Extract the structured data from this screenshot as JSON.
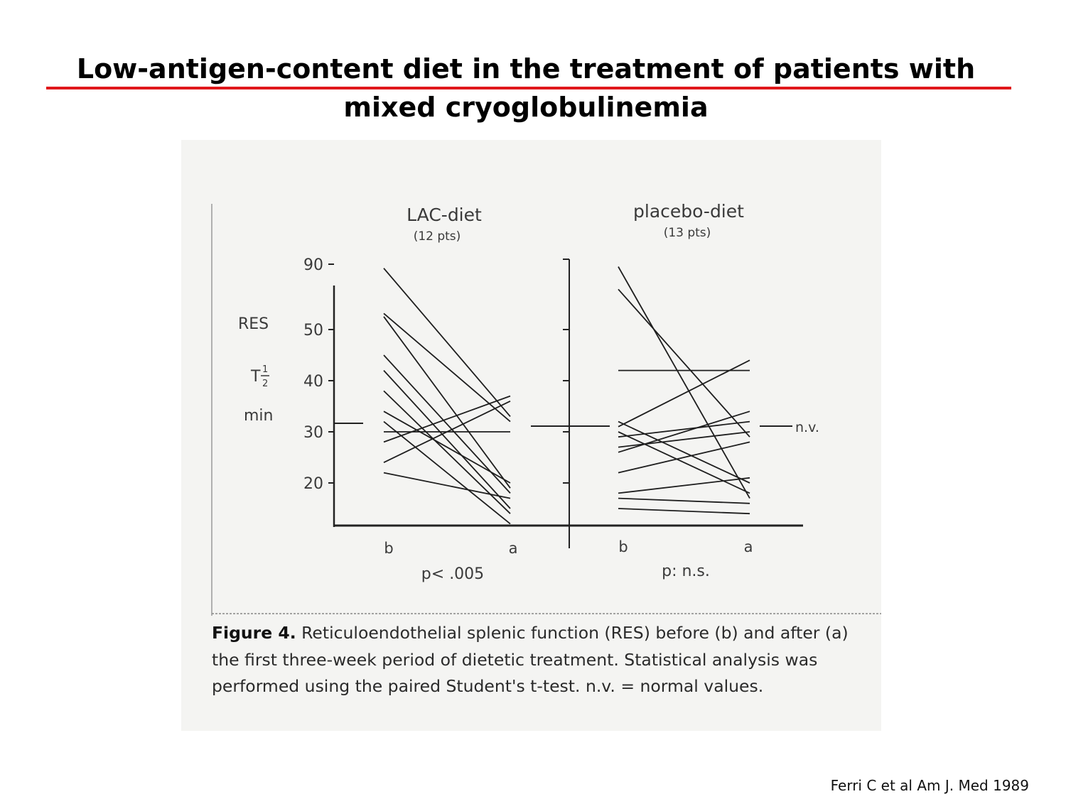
{
  "slide": {
    "title_line1": "Low-antigen-content diet in the treatment of patients with",
    "title_line2": "mixed cryoglobulinemia",
    "citation": "Ferri C et al Am J. Med 1989",
    "accent_color": "#e0181b"
  },
  "figure": {
    "caption_label": "Figure 4.",
    "caption_text": "Reticuloendothelial splenic function (RES) before (b) and after (a) the first three-week period of dietetic treatment. Statistical analysis was performed using the paired Student's t-test. n.v. = normal values."
  },
  "chart_data": {
    "type": "line",
    "ylabel_parts": [
      "RES",
      "T",
      "1",
      "2",
      "min"
    ],
    "yticks": [
      "90",
      "50",
      "40",
      "30",
      "20"
    ],
    "normal_value": 30,
    "normal_label": "n.v.",
    "panels": [
      {
        "name": "LAC-diet",
        "patients": "(12 pts)",
        "x": [
          "b",
          "a"
        ],
        "stat": "p< .005",
        "series": [
          {
            "values": [
              88,
              33
            ]
          },
          {
            "values": [
              60,
              32
            ]
          },
          {
            "values": [
              58,
              19
            ]
          },
          {
            "values": [
              45,
              18
            ]
          },
          {
            "values": [
              42,
              15
            ]
          },
          {
            "values": [
              38,
              14
            ]
          },
          {
            "values": [
              34,
              20
            ]
          },
          {
            "values": [
              32,
              12
            ]
          },
          {
            "values": [
              30,
              30
            ]
          },
          {
            "values": [
              28,
              37
            ]
          },
          {
            "values": [
              24,
              36
            ]
          },
          {
            "values": [
              22,
              17
            ]
          }
        ]
      },
      {
        "name": "placebo-diet",
        "patients": "(13 pts)",
        "x": [
          "b",
          "a"
        ],
        "stat": "p: n.s.",
        "series": [
          {
            "values": [
              89,
              17
            ]
          },
          {
            "values": [
              75,
              29
            ]
          },
          {
            "values": [
              42,
              42
            ]
          },
          {
            "values": [
              32,
              20
            ]
          },
          {
            "values": [
              31,
              44
            ]
          },
          {
            "values": [
              30,
              18
            ]
          },
          {
            "values": [
              29,
              32
            ]
          },
          {
            "values": [
              27,
              30
            ]
          },
          {
            "values": [
              26,
              34
            ]
          },
          {
            "values": [
              22,
              28
            ]
          },
          {
            "values": [
              18,
              21
            ]
          },
          {
            "values": [
              17,
              16
            ]
          },
          {
            "values": [
              15,
              14
            ]
          }
        ]
      }
    ]
  }
}
